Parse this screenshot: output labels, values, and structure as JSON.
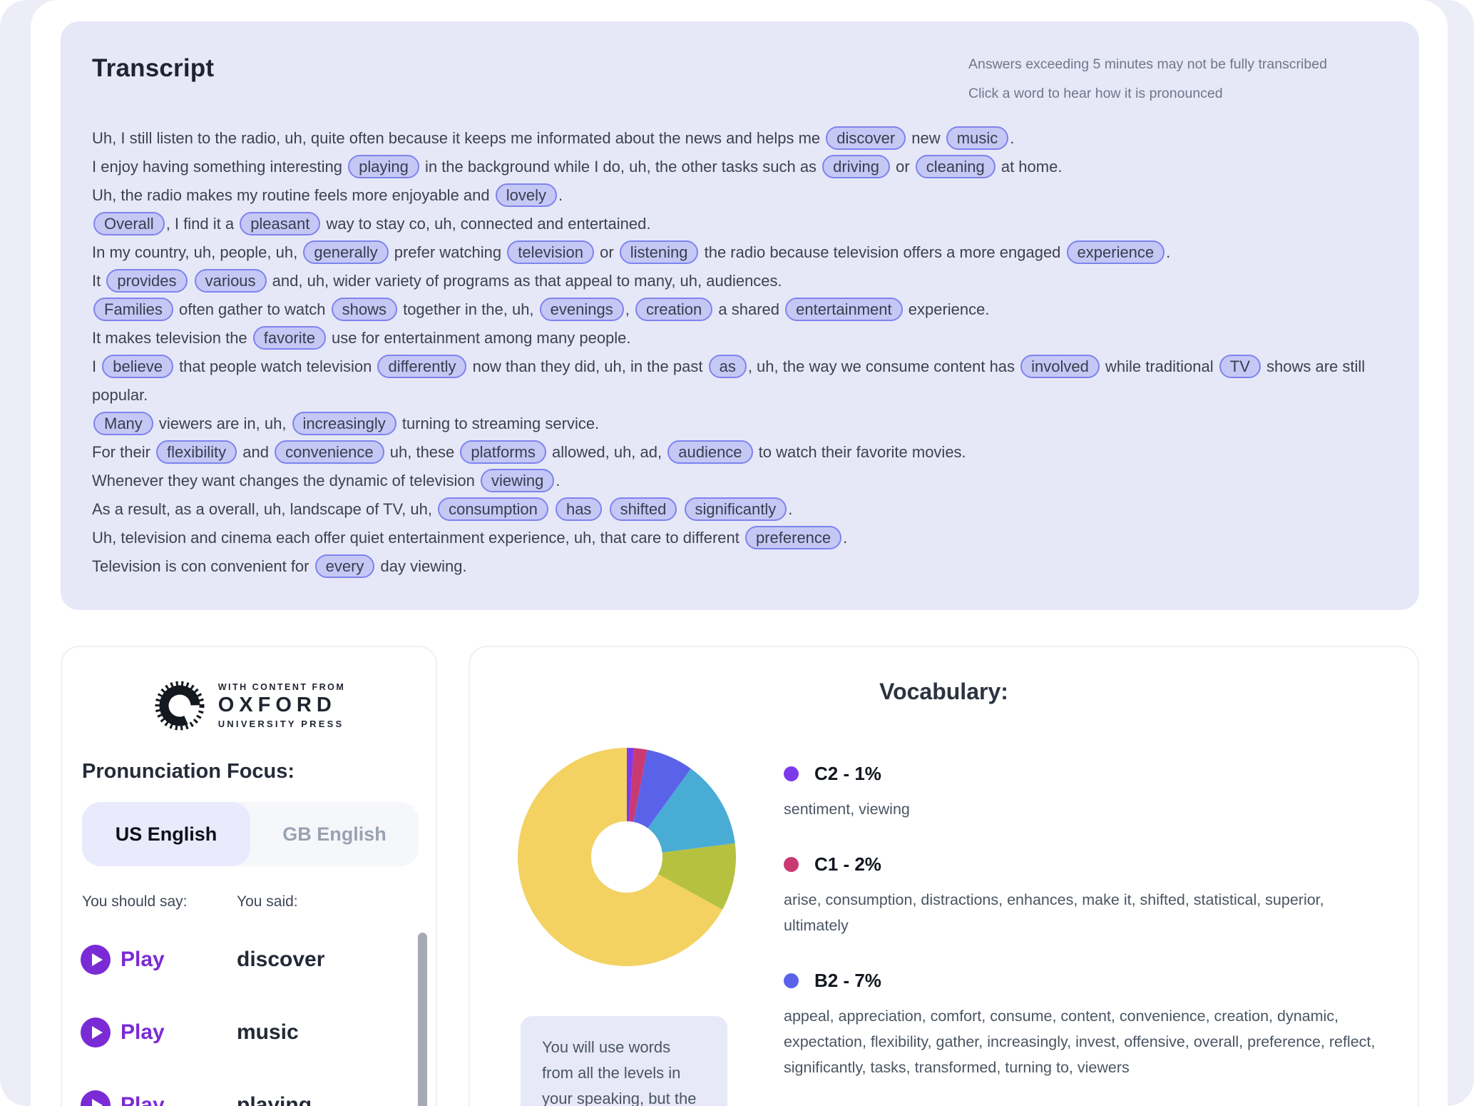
{
  "transcript": {
    "title": "Transcript",
    "note_line1": "Answers exceeding 5 minutes may not be fully transcribed",
    "note_line2": "Click a word to hear how it is pronounced",
    "lines": [
      [
        {
          "t": "Uh, I still listen to the radio, uh, quite often because it keeps me informated about the news and helps me "
        },
        {
          "w": "discover"
        },
        {
          "t": " new "
        },
        {
          "w": "music"
        },
        {
          "t": "."
        }
      ],
      [
        {
          "t": "I enjoy having something interesting "
        },
        {
          "w": "playing"
        },
        {
          "t": " in the background while I do, uh, the other tasks such as "
        },
        {
          "w": "driving"
        },
        {
          "t": " or "
        },
        {
          "w": "cleaning"
        },
        {
          "t": " at home."
        }
      ],
      [
        {
          "t": "Uh, the radio makes my routine feels more enjoyable and "
        },
        {
          "w": "lovely"
        },
        {
          "t": "."
        }
      ],
      [
        {
          "w": "Overall"
        },
        {
          "t": ", I find it a "
        },
        {
          "w": "pleasant"
        },
        {
          "t": " way to stay co, uh, connected and entertained."
        }
      ],
      [
        {
          "t": "In my country, uh, people, uh, "
        },
        {
          "w": "generally"
        },
        {
          "t": " prefer watching "
        },
        {
          "w": "television"
        },
        {
          "t": " or "
        },
        {
          "w": "listening"
        },
        {
          "t": " the radio because television offers a more engaged "
        },
        {
          "w": "experience"
        },
        {
          "t": "."
        }
      ],
      [
        {
          "t": "It "
        },
        {
          "w": "provides"
        },
        {
          "t": " "
        },
        {
          "w": "various"
        },
        {
          "t": " and, uh, wider variety of programs as that appeal to many, uh, audiences."
        }
      ],
      [
        {
          "w": "Families"
        },
        {
          "t": " often gather to watch "
        },
        {
          "w": "shows"
        },
        {
          "t": " together in the, uh, "
        },
        {
          "w": "evenings"
        },
        {
          "t": ", "
        },
        {
          "w": "creation"
        },
        {
          "t": " a shared "
        },
        {
          "w": "entertainment"
        },
        {
          "t": " experience."
        }
      ],
      [
        {
          "t": "It makes television the "
        },
        {
          "w": "favorite"
        },
        {
          "t": " use for entertainment among many people."
        }
      ],
      [
        {
          "t": "I "
        },
        {
          "w": "believe"
        },
        {
          "t": " that people watch television "
        },
        {
          "w": "differently"
        },
        {
          "t": " now than they did, uh, in the past "
        },
        {
          "w": "as"
        },
        {
          "t": ", uh, the way we consume content has "
        },
        {
          "w": "involved"
        },
        {
          "t": " while traditional "
        },
        {
          "w": "TV"
        },
        {
          "t": " shows are still popular."
        }
      ],
      [
        {
          "w": "Many"
        },
        {
          "t": " viewers are in, uh, "
        },
        {
          "w": "increasingly"
        },
        {
          "t": " turning to streaming service."
        }
      ],
      [
        {
          "t": "For their "
        },
        {
          "w": "flexibility"
        },
        {
          "t": " and "
        },
        {
          "w": "convenience"
        },
        {
          "t": " uh, these "
        },
        {
          "w": "platforms"
        },
        {
          "t": " allowed, uh, ad, "
        },
        {
          "w": "audience"
        },
        {
          "t": " to watch their favorite movies."
        }
      ],
      [
        {
          "t": "Whenever they want changes the dynamic of television "
        },
        {
          "w": "viewing"
        },
        {
          "t": "."
        }
      ],
      [
        {
          "t": "As a result, as a overall, uh, landscape of TV, uh, "
        },
        {
          "w": "consumption"
        },
        {
          "t": " "
        },
        {
          "w": "has"
        },
        {
          "t": " "
        },
        {
          "w": "shifted"
        },
        {
          "t": " "
        },
        {
          "w": "significantly"
        },
        {
          "t": "."
        }
      ],
      [
        {
          "t": "Uh, television and cinema each offer quiet entertainment experience, uh, that care to different "
        },
        {
          "w": "preference"
        },
        {
          "t": "."
        }
      ],
      [
        {
          "t": "Television is con convenient for "
        },
        {
          "w": "every"
        },
        {
          "t": " day viewing."
        }
      ]
    ]
  },
  "pronunciation": {
    "logo": {
      "tagline": "WITH CONTENT FROM",
      "name": "OXFORD",
      "subname": "UNIVERSITY PRESS"
    },
    "heading": "Pronunciation Focus:",
    "tabs": [
      {
        "label": "US English",
        "active": true
      },
      {
        "label": "GB English",
        "active": false
      }
    ],
    "col1": "You should say:",
    "col2": "You said:",
    "play_label": "Play",
    "words": [
      "discover",
      "music",
      "playing"
    ],
    "accent_color": "#7a2bd6"
  },
  "vocabulary": {
    "title": "Vocabulary:",
    "groups": [
      {
        "label": "C2 - 1%",
        "color": "#7c3aed",
        "words": "sentiment, viewing"
      },
      {
        "label": "C1 - 2%",
        "color": "#c93a72",
        "words": "arise, consumption, distractions, enhances, make it, shifted, statistical, superior, ultimately"
      },
      {
        "label": "B2 - 7%",
        "color": "#5b62ea",
        "words": "appeal, appreciation, comfort, consume, content, convenience, creation, dynamic, expectation, flexibility, gather, increasingly, invest, offensive, overall, preference, reflect, significantly, tasks, transformed, turning to, viewers"
      }
    ],
    "tooltip": "You will use words from all the levels in your speaking, but the"
  },
  "chart_data": {
    "type": "pie",
    "donut": true,
    "title": "Vocabulary:",
    "legend_position": "right",
    "slices": [
      {
        "label": "C2",
        "pct": 1,
        "color": "#7c3aed"
      },
      {
        "label": "C1",
        "pct": 2,
        "color": "#c93a72"
      },
      {
        "label": "B2",
        "pct": 7,
        "color": "#5b62ea"
      },
      {
        "label": "",
        "pct": 13,
        "color": "#49acd4"
      },
      {
        "label": "",
        "pct": 10,
        "color": "#b6c140"
      },
      {
        "label": "",
        "pct": 67,
        "color": "#f3d262"
      }
    ]
  },
  "colors": {
    "card_bg": "#e6e8f8",
    "pill_bg": "#c5c8f4",
    "pill_border": "#7e83ee",
    "play_purple": "#7a2bd6"
  }
}
